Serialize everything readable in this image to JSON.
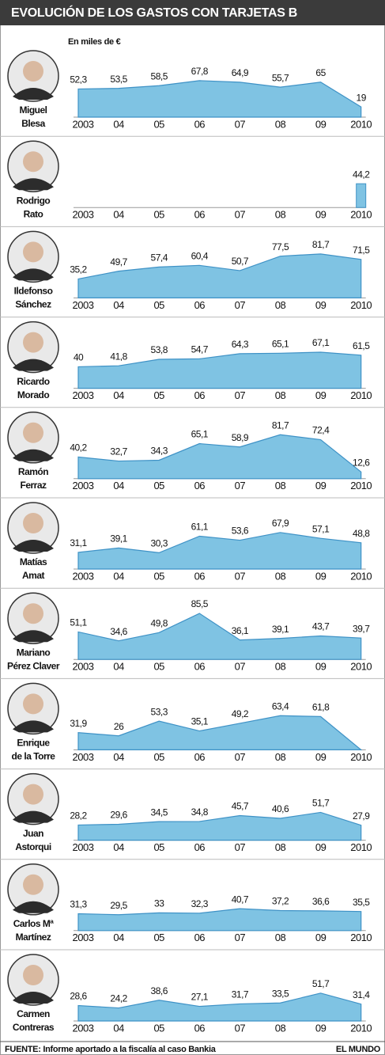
{
  "title": "EVOLUCIÓN DE LOS GASTOS CON TARJETAS B",
  "subtitle": "En miles de €",
  "source": "FUENTE: Informe aportado a la fiscalía al caso Bankia",
  "credit": "EL MUNDO",
  "chart_data": [
    {
      "type": "area",
      "person": [
        "Miguel",
        "Blesa"
      ],
      "categories": [
        "2003",
        "04",
        "05",
        "06",
        "07",
        "08",
        "09",
        "2010"
      ],
      "ylim": [
        0,
        100
      ],
      "color": "#7fc3e3",
      "values": [
        52.3,
        53.5,
        58.5,
        67.8,
        64.9,
        55.7,
        65,
        19
      ],
      "value_labels": [
        "52,3",
        "53,5",
        "58,5",
        "67,8",
        "64,9",
        "55,7",
        "65",
        "19"
      ]
    },
    {
      "type": "bar",
      "person": [
        "Rodrigo",
        "Rato"
      ],
      "categories": [
        "2003",
        "04",
        "05",
        "06",
        "07",
        "08",
        "09",
        "2010"
      ],
      "ylim": [
        0,
        100
      ],
      "color": "#7fc3e3",
      "values": [
        null,
        null,
        null,
        null,
        null,
        null,
        null,
        44.2
      ],
      "value_labels": [
        null,
        null,
        null,
        null,
        null,
        null,
        null,
        "44,2"
      ]
    },
    {
      "type": "area",
      "person": [
        "Ildefonso",
        "Sánchez"
      ],
      "categories": [
        "2003",
        "04",
        "05",
        "06",
        "07",
        "08",
        "09",
        "2010"
      ],
      "ylim": [
        0,
        100
      ],
      "color": "#7fc3e3",
      "values": [
        35.2,
        49.7,
        57.4,
        60.4,
        50.7,
        77.5,
        81.7,
        71.5
      ],
      "value_labels": [
        "35,2",
        "49,7",
        "57,4",
        "60,4",
        "50,7",
        "77,5",
        "81,7",
        "71,5"
      ]
    },
    {
      "type": "area",
      "person": [
        "Ricardo",
        "Morado"
      ],
      "categories": [
        "2003",
        "04",
        "05",
        "06",
        "07",
        "08",
        "09",
        "2010"
      ],
      "ylim": [
        0,
        100
      ],
      "color": "#7fc3e3",
      "values": [
        40,
        41.8,
        53.8,
        54.7,
        64.3,
        65.1,
        67.1,
        61.5
      ],
      "value_labels": [
        "40",
        "41,8",
        "53,8",
        "54,7",
        "64,3",
        "65,1",
        "67,1",
        "61,5"
      ]
    },
    {
      "type": "area",
      "person": [
        "Ramón",
        "Ferraz"
      ],
      "categories": [
        "2003",
        "04",
        "05",
        "06",
        "07",
        "08",
        "09",
        "2010"
      ],
      "ylim": [
        0,
        100
      ],
      "color": "#7fc3e3",
      "values": [
        40.2,
        32.7,
        34.3,
        65.1,
        58.9,
        81.7,
        72.4,
        12.6
      ],
      "value_labels": [
        "40,2",
        "32,7",
        "34,3",
        "65,1",
        "58,9",
        "81,7",
        "72,4",
        "12,6"
      ]
    },
    {
      "type": "area",
      "person": [
        "Matías",
        "Amat"
      ],
      "categories": [
        "2003",
        "04",
        "05",
        "06",
        "07",
        "08",
        "09",
        "2010"
      ],
      "ylim": [
        0,
        100
      ],
      "color": "#7fc3e3",
      "values": [
        31.1,
        39.1,
        30.3,
        61.1,
        53.6,
        67.9,
        57.1,
        48.8
      ],
      "value_labels": [
        "31,1",
        "39,1",
        "30,3",
        "61,1",
        "53,6",
        "67,9",
        "57,1",
        "48,8"
      ]
    },
    {
      "type": "area",
      "person": [
        "Mariano",
        "Pérez Claver"
      ],
      "categories": [
        "2003",
        "04",
        "05",
        "06",
        "07",
        "08",
        "09",
        "2010"
      ],
      "ylim": [
        0,
        100
      ],
      "color": "#7fc3e3",
      "values": [
        51.1,
        34.6,
        49.8,
        85.5,
        36.1,
        39.1,
        43.7,
        39.7
      ],
      "value_labels": [
        "51,1",
        "34,6",
        "49,8",
        "85,5",
        "36,1",
        "39,1",
        "43,7",
        "39,7"
      ]
    },
    {
      "type": "area",
      "person": [
        "Enrique",
        "de la Torre"
      ],
      "categories": [
        "2003",
        "04",
        "05",
        "06",
        "07",
        "08",
        "09",
        "2010"
      ],
      "ylim": [
        0,
        100
      ],
      "color": "#7fc3e3",
      "values": [
        31.9,
        26,
        53.3,
        35.1,
        49.2,
        63.4,
        61.8,
        0
      ],
      "value_labels": [
        "31,9",
        "26",
        "53,3",
        "35,1",
        "49,2",
        "63,4",
        "61,8",
        null
      ]
    },
    {
      "type": "area",
      "person": [
        "Juan",
        "Astorqui"
      ],
      "categories": [
        "2003",
        "04",
        "05",
        "06",
        "07",
        "08",
        "09",
        "2010"
      ],
      "ylim": [
        0,
        100
      ],
      "color": "#7fc3e3",
      "values": [
        28.2,
        29.6,
        34.5,
        34.8,
        45.7,
        40.6,
        51.7,
        27.9
      ],
      "value_labels": [
        "28,2",
        "29,6",
        "34,5",
        "34,8",
        "45,7",
        "40,6",
        "51,7",
        "27,9"
      ]
    },
    {
      "type": "area",
      "person": [
        "Carlos Mª",
        "Martínez"
      ],
      "categories": [
        "2003",
        "04",
        "05",
        "06",
        "07",
        "08",
        "09",
        "2010"
      ],
      "ylim": [
        0,
        100
      ],
      "color": "#7fc3e3",
      "values": [
        31.3,
        29.5,
        33,
        32.3,
        40.7,
        37.2,
        36.6,
        35.5
      ],
      "value_labels": [
        "31,3",
        "29,5",
        "33",
        "32,3",
        "40,7",
        "37,2",
        "36,6",
        "35,5"
      ]
    },
    {
      "type": "area",
      "person": [
        "Carmen",
        "Contreras"
      ],
      "categories": [
        "2003",
        "04",
        "05",
        "06",
        "07",
        "08",
        "09",
        "2010"
      ],
      "ylim": [
        0,
        100
      ],
      "color": "#7fc3e3",
      "values": [
        28.6,
        24.2,
        38.6,
        27.1,
        31.7,
        33.5,
        51.7,
        31.4
      ],
      "value_labels": [
        "28,6",
        "24,2",
        "38,6",
        "27,1",
        "31,7",
        "33,5",
        "51,7",
        "31,4"
      ]
    }
  ]
}
